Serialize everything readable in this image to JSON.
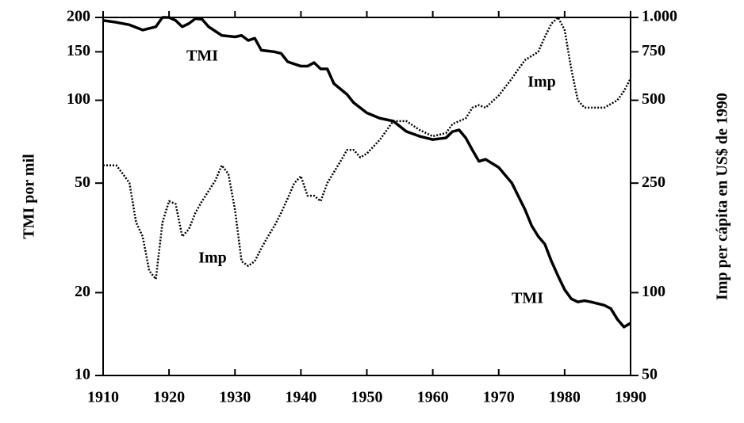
{
  "chart_data": {
    "type": "line",
    "y_label": "TMI por mil",
    "y2_label": "Imp per cápita en US$ de 1990",
    "log_scale": true,
    "xlim": [
      1910,
      1990
    ],
    "xticks": [
      1910,
      1920,
      1930,
      1940,
      1950,
      1960,
      1970,
      1980,
      1990
    ],
    "ylim": [
      10,
      200
    ],
    "yticks": [
      10,
      20,
      50,
      100,
      150,
      200
    ],
    "y2lim": [
      50,
      1000
    ],
    "y2ticks": [
      50,
      100,
      250,
      500,
      750,
      {
        "value": 1000,
        "label": "1.000"
      }
    ],
    "series": [
      {
        "name": "TMI",
        "color": "#000000",
        "style": "solid",
        "x": [
          1910,
          1912,
          1914,
          1916,
          1918,
          1919,
          1920,
          1921,
          1922,
          1923,
          1924,
          1925,
          1926,
          1928,
          1930,
          1931,
          1932,
          1933,
          1934,
          1936,
          1937,
          1938,
          1940,
          1941,
          1942,
          1943,
          1944,
          1945,
          1947,
          1948,
          1950,
          1952,
          1954,
          1956,
          1958,
          1960,
          1962,
          1963,
          1964,
          1965,
          1966,
          1967,
          1968,
          1970,
          1972,
          1974,
          1975,
          1976,
          1977,
          1978,
          1979,
          1980,
          1981,
          1982,
          1983,
          1984,
          1986,
          1987,
          1988,
          1989,
          1990
        ],
        "values": [
          195,
          192,
          188,
          180,
          185,
          200,
          200,
          195,
          185,
          190,
          198,
          197,
          185,
          172,
          170,
          172,
          165,
          168,
          152,
          150,
          148,
          138,
          133,
          133,
          137,
          130,
          130,
          115,
          105,
          98,
          90,
          86,
          84,
          77,
          74,
          72,
          73,
          77,
          78,
          73,
          66,
          60,
          61,
          57,
          50,
          40,
          35,
          32,
          30,
          26,
          23,
          20.5,
          19,
          18.5,
          18.7,
          18.5,
          18,
          17.5,
          16,
          15,
          15.5
        ]
      },
      {
        "name": "Imp",
        "color": "#000000",
        "style": "dotted",
        "axis": "y2",
        "x": [
          1910,
          1912,
          1913,
          1914,
          1915,
          1916,
          1917,
          1918,
          1919,
          1920,
          1921,
          1922,
          1923,
          1924,
          1925,
          1927,
          1928,
          1929,
          1930,
          1931,
          1932,
          1933,
          1934,
          1935,
          1936,
          1937,
          1938,
          1939,
          1940,
          1941,
          1942,
          1943,
          1944,
          1946,
          1947,
          1948,
          1949,
          1950,
          1952,
          1954,
          1956,
          1958,
          1960,
          1962,
          1963,
          1965,
          1966,
          1967,
          1968,
          1970,
          1972,
          1973,
          1974,
          1976,
          1977,
          1978,
          1979,
          1980,
          1981,
          1982,
          1983,
          1986,
          1988,
          1989,
          1990
        ],
        "values": [
          290,
          290,
          270,
          250,
          180,
          160,
          120,
          112,
          180,
          215,
          210,
          160,
          170,
          195,
          215,
          255,
          290,
          270,
          200,
          130,
          125,
          130,
          145,
          160,
          175,
          195,
          220,
          250,
          265,
          225,
          225,
          215,
          250,
          300,
          330,
          330,
          310,
          320,
          360,
          420,
          420,
          390,
          370,
          380,
          410,
          430,
          470,
          480,
          470,
          520,
          600,
          650,
          700,
          750,
          850,
          950,
          1000,
          900,
          650,
          500,
          470,
          470,
          500,
          540,
          600
        ]
      }
    ]
  }
}
